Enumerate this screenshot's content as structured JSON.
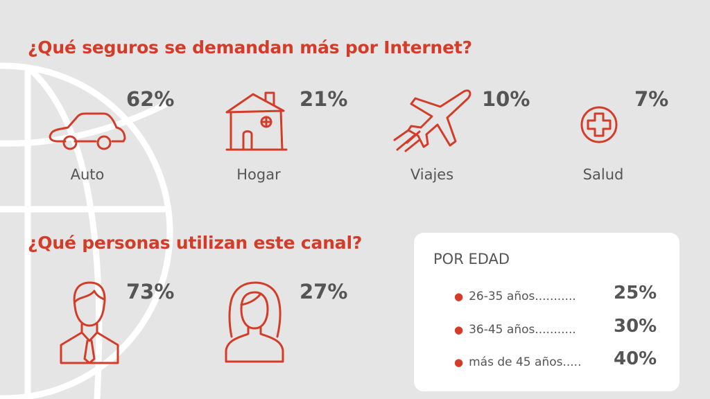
{
  "colors": {
    "accent": "#d23c28",
    "background": "#e5e5e5",
    "text": "#555555"
  },
  "section1": {
    "title": "¿Qué seguros se demandan más por Internet?",
    "items": [
      {
        "label": "Auto",
        "value": "62%",
        "icon": "car-icon"
      },
      {
        "label": "Hogar",
        "value": "21%",
        "icon": "house-icon"
      },
      {
        "label": "Viajes",
        "value": "10%",
        "icon": "airplane-icon"
      },
      {
        "label": "Salud",
        "value": "7%",
        "icon": "medical-cross-icon"
      }
    ]
  },
  "section2": {
    "title": "¿Qué personas utilizan este canal?",
    "items": [
      {
        "value": "73%",
        "icon": "man-icon"
      },
      {
        "value": "27%",
        "icon": "woman-icon"
      }
    ]
  },
  "age_box": {
    "title": "POR EDAD",
    "rows": [
      {
        "label": "26-35 años...........",
        "value": "25%"
      },
      {
        "label": "36-45 años...........",
        "value": "30%"
      },
      {
        "label": "más de 45 años.....",
        "value": "40%"
      }
    ]
  }
}
